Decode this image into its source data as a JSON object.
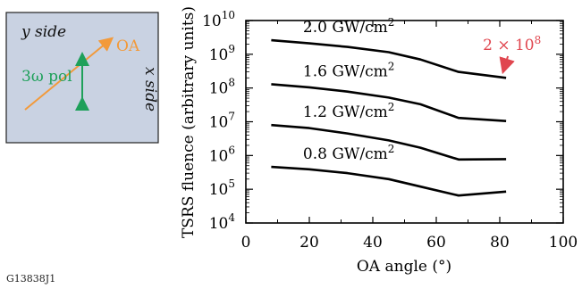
{
  "inset": {
    "y_side": "y side",
    "x_side": "x side",
    "oa": "OA",
    "pol": "3ω pol",
    "colors": {
      "box_fill": "#c9d2e2",
      "oa": "#f29a3b",
      "pol": "#1ea05a"
    }
  },
  "figure_id": "G13838J1",
  "annotation": {
    "text": "2 × 10",
    "exp": "8",
    "color": "#e0464f"
  },
  "chart_data": {
    "type": "line",
    "xlabel": "OA angle (°)",
    "ylabel": "TSRS fluence (arbitrary units)",
    "yscale": "log",
    "xlim": [
      0,
      100
    ],
    "ylim": [
      10000,
      10000000000
    ],
    "xticks": [
      "0",
      "20",
      "40",
      "60",
      "80",
      "100"
    ],
    "yticks": [
      {
        "base": "10",
        "exp": "4"
      },
      {
        "base": "10",
        "exp": "5"
      },
      {
        "base": "10",
        "exp": "6"
      },
      {
        "base": "10",
        "exp": "7"
      },
      {
        "base": "10",
        "exp": "8"
      },
      {
        "base": "10",
        "exp": "9"
      },
      {
        "base": "10",
        "exp": "10"
      }
    ],
    "grid": false,
    "series": [
      {
        "name": "2.0 GW/cm",
        "unit_exp": "2",
        "x": [
          8,
          20,
          32,
          45,
          55,
          67,
          82
        ],
        "y": [
          2600000000,
          2100000000,
          1650000000,
          1150000000,
          700000000,
          300000000,
          200000000
        ]
      },
      {
        "name": "1.6 GW/cm",
        "unit_exp": "2",
        "x": [
          8,
          20,
          32,
          45,
          55,
          67,
          82
        ],
        "y": [
          130000000,
          105000000,
          78000000,
          52000000,
          33000000,
          13000000,
          10500000
        ]
      },
      {
        "name": "1.2 GW/cm",
        "unit_exp": "2",
        "x": [
          8,
          20,
          32,
          45,
          55,
          67,
          82
        ],
        "y": [
          8000000,
          6500000,
          4500000,
          2800000,
          1700000,
          760000,
          780000
        ]
      },
      {
        "name": "0.8 GW/cm",
        "unit_exp": "2",
        "x": [
          8,
          20,
          32,
          45,
          55,
          67,
          82
        ],
        "y": [
          460000,
          390000,
          300000,
          200000,
          120000,
          65000,
          85000
        ]
      }
    ]
  }
}
